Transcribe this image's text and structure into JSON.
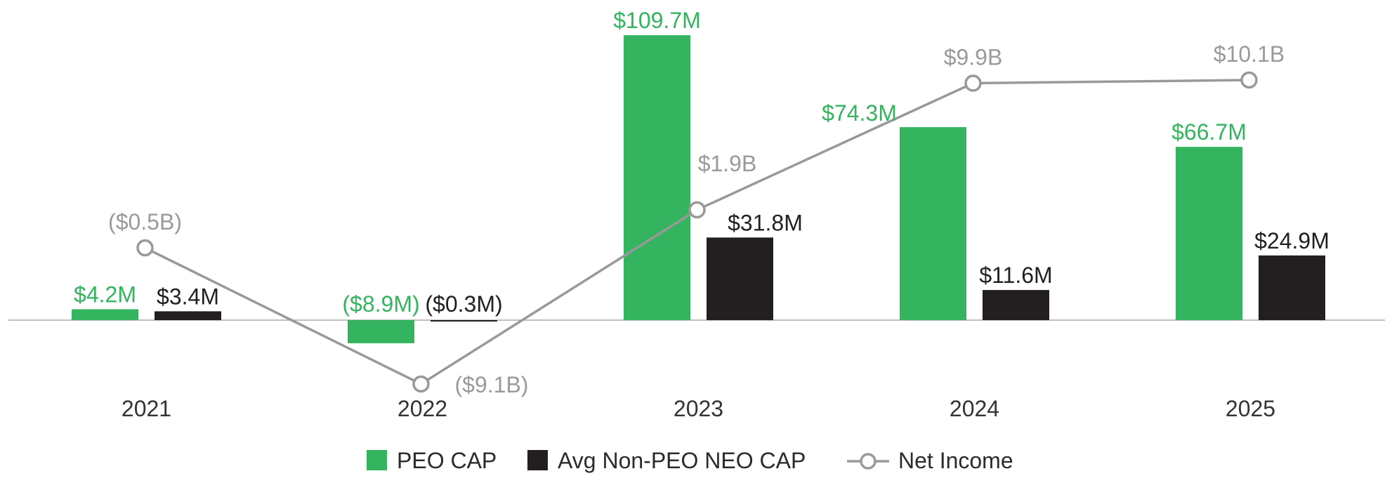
{
  "colors": {
    "peo": "#34b45f",
    "neo": "#231f20",
    "line": "#999999",
    "axis": "#aaaaaa",
    "ink": "#2b2b2b"
  },
  "chart_data": {
    "type": "bar",
    "title": "",
    "xlabel": "",
    "ylabel": "",
    "categories": [
      "2021",
      "2022",
      "2023",
      "2024",
      "2025"
    ],
    "series": [
      {
        "name": "PEO CAP",
        "kind": "bar",
        "unit": "$M",
        "values": [
          4.2,
          -8.9,
          109.7,
          74.3,
          66.7
        ],
        "labels": [
          "$4.2M",
          "($8.9M)",
          "$109.7M",
          "$74.3M",
          "$66.7M"
        ]
      },
      {
        "name": "Avg Non-PEO NEO CAP",
        "kind": "bar",
        "unit": "$M",
        "values": [
          3.4,
          -0.3,
          31.8,
          11.6,
          24.9
        ],
        "labels": [
          "$3.4M",
          "($0.3M)",
          "$31.8M",
          "$11.6M",
          "$24.9M"
        ]
      },
      {
        "name": "Net Income",
        "kind": "line",
        "unit": "$B",
        "values": [
          -0.5,
          -9.1,
          1.9,
          9.9,
          10.1
        ],
        "labels": [
          "($0.5B)",
          "($9.1B)",
          "$1.9B",
          "$9.9B",
          "$10.1B"
        ]
      }
    ],
    "ylim_bars": [
      -12,
      110
    ],
    "ylim_line": [
      -9.1,
      10.1
    ],
    "legend": {
      "placement": "bottom-center",
      "items": [
        "PEO CAP",
        "Avg Non-PEO NEO CAP",
        "Net Income"
      ]
    }
  }
}
